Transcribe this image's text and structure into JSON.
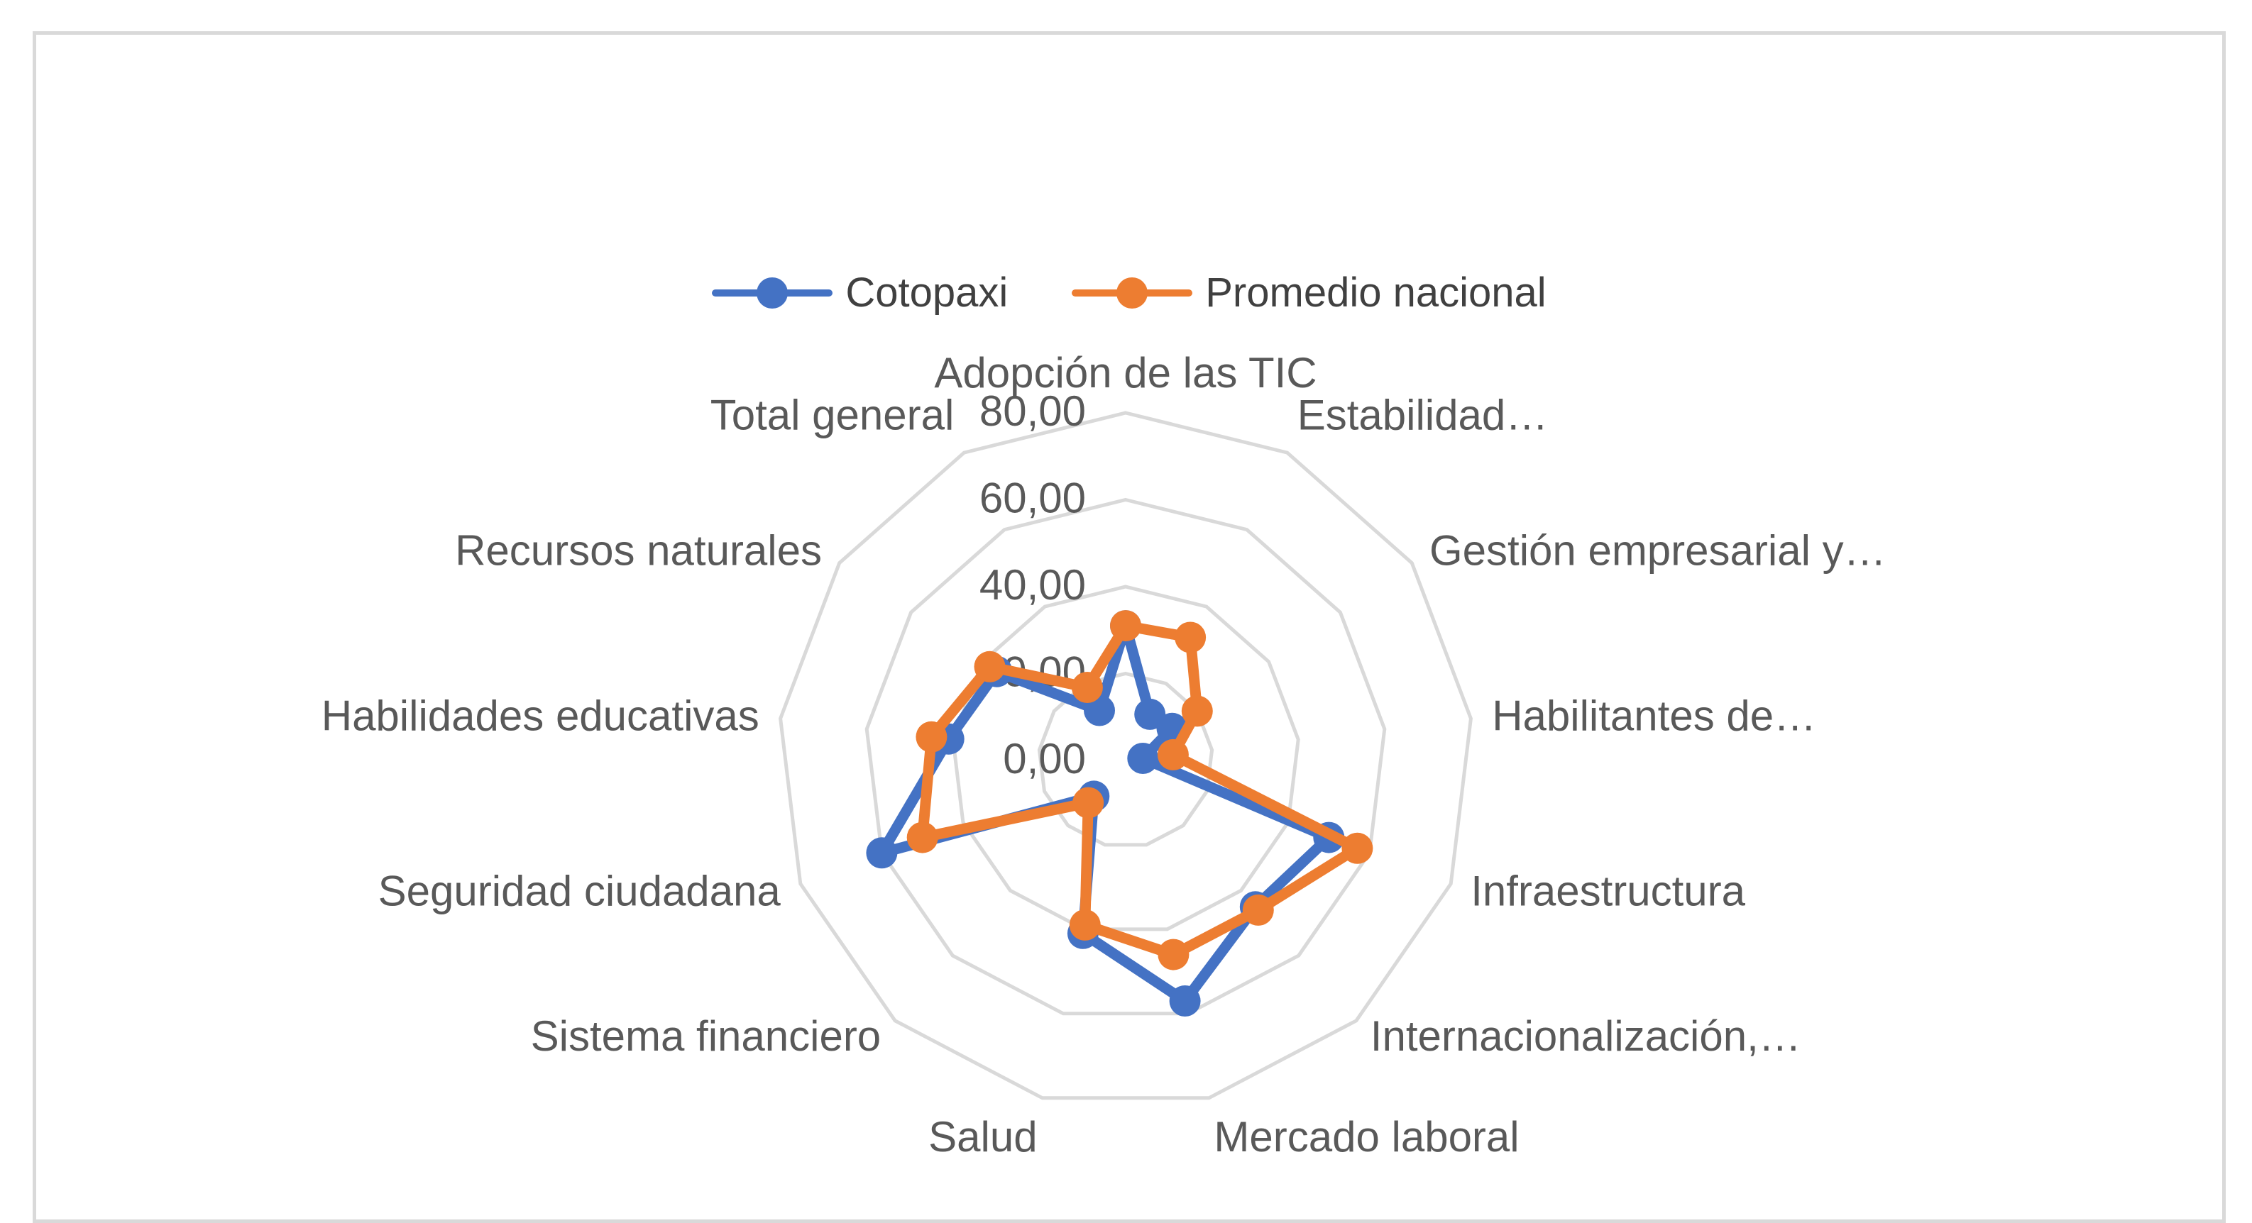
{
  "chart_data": {
    "type": "radar",
    "title": "",
    "categories": [
      "Adopción de las TIC",
      "Estabilidad…",
      "Gestión empresarial y…",
      "Habilitantes de…",
      "Infraestructura",
      "Internacionalización,…",
      "Mercado laboral",
      "Salud",
      "Sistema financiero",
      "Seguridad ciudadana",
      "Habilidades educativas",
      "Recursos naturales",
      "Total general"
    ],
    "ticks": [
      "0,00",
      "20,00",
      "40,00",
      "60,00",
      "80,00"
    ],
    "range": [
      0,
      80
    ],
    "gridlines": true,
    "legend_position": "top",
    "series": [
      {
        "name": "Cotopaxi",
        "color": "#4472c4",
        "values": [
          31,
          12,
          13,
          4,
          50,
          45,
          57,
          41,
          11,
          60,
          41,
          36,
          13
        ]
      },
      {
        "name": "Promedio nacional",
        "color": "#ed7d31",
        "values": [
          31,
          32,
          20,
          11,
          57,
          46,
          46,
          39,
          13,
          50,
          45,
          38,
          19
        ]
      }
    ]
  }
}
